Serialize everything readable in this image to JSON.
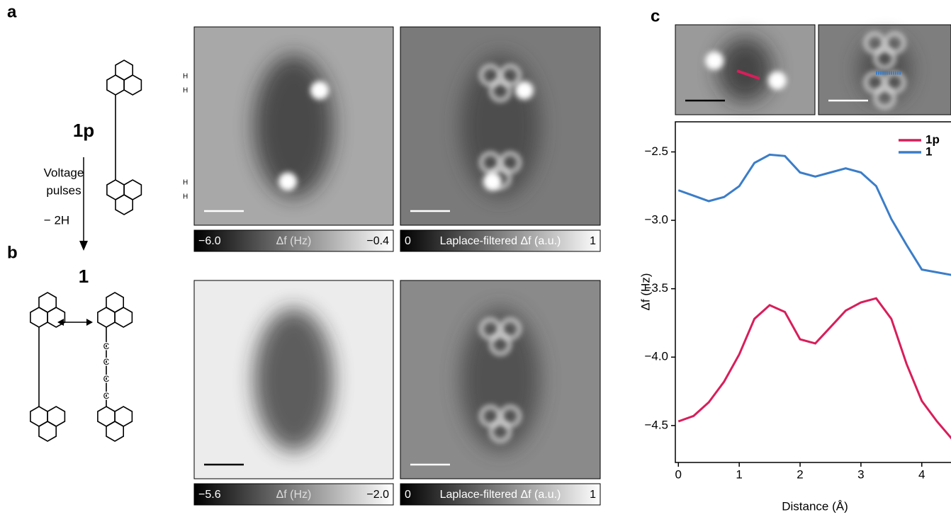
{
  "panels": {
    "a": {
      "label": "a",
      "compound": "1p",
      "h_labels": [
        "H",
        "H",
        "H",
        "H"
      ],
      "arrow_text": [
        "Voltage",
        "pulses",
        "− 2H"
      ],
      "colorbars": [
        {
          "min": "−6.0",
          "title": "Δf (Hz)",
          "max": "−0.4"
        },
        {
          "min": "0",
          "title": "Laplace-filtered Δf (a.u.)",
          "max": "1"
        }
      ]
    },
    "b": {
      "label": "b",
      "compound": "1",
      "c_labels": [
        "C",
        "C",
        "C",
        "C"
      ],
      "colorbars": [
        {
          "min": "−5.6",
          "title": "Δf (Hz)",
          "max": "−2.0"
        },
        {
          "min": "0",
          "title": "Laplace-filtered Δf (a.u.)",
          "max": "1"
        }
      ]
    },
    "c": {
      "label": "c"
    }
  },
  "chart_data": {
    "type": "line",
    "x_label": "Distance (Å)",
    "y_label": "Δf (Hz)",
    "x": [
      0,
      0.25,
      0.5,
      0.75,
      1,
      1.25,
      1.5,
      1.75,
      2,
      2.25,
      2.5,
      2.75,
      3,
      3.25,
      3.5,
      3.75,
      4,
      4.25,
      4.5
    ],
    "series": [
      {
        "name": "1p",
        "color": "#d81e5b",
        "values": [
          -4.47,
          -4.43,
          -4.33,
          -4.18,
          -3.98,
          -3.72,
          -3.62,
          -3.67,
          -3.87,
          -3.9,
          -3.78,
          -3.66,
          -3.6,
          -3.57,
          -3.72,
          -4.05,
          -4.32,
          -4.47,
          -4.6
        ]
      },
      {
        "name": "1",
        "color": "#3b7dc8",
        "values": [
          -2.78,
          -2.82,
          -2.86,
          -2.83,
          -2.75,
          -2.58,
          -2.52,
          -2.53,
          -2.65,
          -2.68,
          -2.65,
          -2.62,
          -2.65,
          -2.75,
          -2.99,
          -3.18,
          -3.36,
          -3.38,
          -3.4
        ]
      }
    ],
    "xlim": [
      -0.05,
      4.48
    ],
    "ylim": [
      -4.77,
      -2.28
    ],
    "xticks": [
      0,
      1,
      2,
      3,
      4
    ],
    "yticks": [
      {
        "value": -2.5,
        "label": "−2.5"
      },
      {
        "value": -3,
        "label": "−3.0"
      },
      {
        "value": -3.5,
        "label": "−3.5"
      },
      {
        "value": -4,
        "label": "−4.0"
      },
      {
        "value": -4.5,
        "label": "−4.5"
      }
    ],
    "legend": "upper right"
  }
}
